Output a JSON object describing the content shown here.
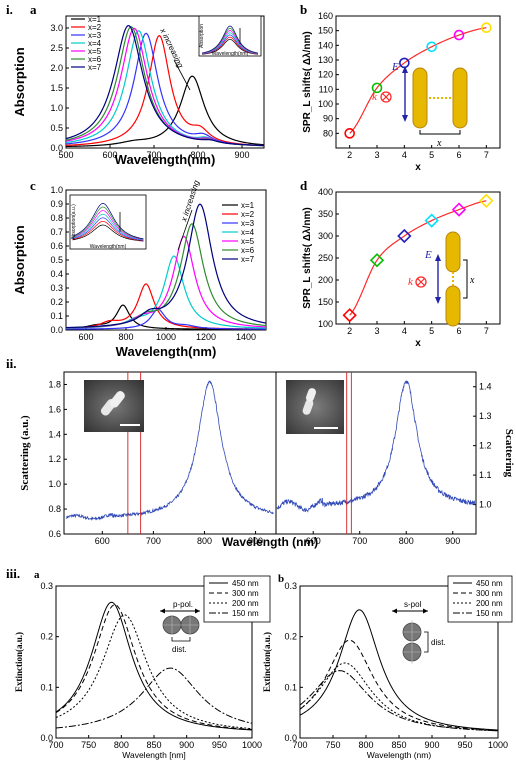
{
  "panel_labels": {
    "i": "i.",
    "ii": "ii.",
    "iii": "iii.",
    "ia": "a",
    "ib": "b",
    "ic": "c",
    "id": "d",
    "iiia": "a",
    "iiib": "b"
  },
  "colors": {
    "x1": "#000000",
    "x2": "#ff0000",
    "x3": "#3333ff",
    "x4": "#00cccc",
    "x5": "#ff00ff",
    "x6": "#2e8b2e",
    "x7": "#000080",
    "fit": "#ff2a2a",
    "rod": "#e6b800",
    "rod_edge": "#b8860b",
    "scatter_blue": "#3149b8",
    "marker_red": "#ff0000",
    "green": "#00c000",
    "blue": "#2020c0",
    "cyan": "#00e0ff",
    "magenta": "#ff00ff",
    "yellow": "#ffe000",
    "sphere": "#777777"
  },
  "diagrams": {
    "b_E": "E",
    "b_k": "k",
    "b_x": "x",
    "d_E": "E",
    "d_k": "k",
    "d_x": "x",
    "iiia_pol": "p-pol.",
    "iiia_dist": "dist.",
    "iiib_pol": "s-pol",
    "iiib_dist": "dist."
  },
  "chart_data": [
    {
      "id": "i-a",
      "type": "line",
      "xlabel": "Wavelength(nm)",
      "ylabel": "Absorption",
      "xlim": [
        500,
        950
      ],
      "ylim": [
        0,
        3.3
      ],
      "xticks": [
        500,
        600,
        700,
        800,
        900
      ],
      "yticks": [
        0.0,
        0.5,
        1.0,
        1.5,
        2.0,
        2.5,
        3.0
      ],
      "annotation": "x increasing",
      "legend": [
        "x=1",
        "x=2",
        "x=3",
        "x=4",
        "x=5",
        "x=6",
        "x=7"
      ],
      "series": [
        {
          "name": "x=1",
          "peaks": [
            [
              787,
              1.78,
              33
            ],
            [
              655,
              0.08,
              40
            ]
          ]
        },
        {
          "name": "x=2",
          "peaks": [
            [
              712,
              2.78,
              30
            ],
            [
              805,
              0.28,
              25
            ]
          ]
        },
        {
          "name": "x=3",
          "peaks": [
            [
              682,
              2.85,
              33
            ],
            [
              812,
              0.18,
              25
            ]
          ]
        },
        {
          "name": "x=4",
          "peaks": [
            [
              665,
              2.92,
              35
            ],
            [
              818,
              0.12,
              22
            ]
          ]
        },
        {
          "name": "x=5",
          "peaks": [
            [
              655,
              2.98,
              37
            ],
            [
              822,
              0.1,
              22
            ]
          ]
        },
        {
          "name": "x=6",
          "peaks": [
            [
              648,
              3.02,
              38
            ],
            [
              825,
              0.08,
              22
            ]
          ]
        },
        {
          "name": "x=7",
          "peaks": [
            [
              642,
              3.05,
              40
            ],
            [
              828,
              0.06,
              22
            ]
          ]
        }
      ],
      "inset": {
        "xlabel": "Wavelength(nm)",
        "ylabel": "Absorption"
      }
    },
    {
      "id": "i-b",
      "type": "scatter",
      "xlabel": "x",
      "ylabel": "SPR_L shifts( Δλ/nm)",
      "xlim": [
        1.5,
        7.5
      ],
      "ylim": [
        70,
        160
      ],
      "xticks": [
        2,
        3,
        4,
        5,
        6,
        7
      ],
      "yticks": [
        80,
        90,
        100,
        110,
        120,
        130,
        140,
        150,
        160
      ],
      "x": [
        2,
        3,
        4,
        5,
        6,
        7
      ],
      "y": [
        80,
        111,
        128,
        139,
        147,
        152
      ],
      "marker_colors": [
        "#ff0000",
        "#00c000",
        "#2020c0",
        "#00e0ff",
        "#ff00ff",
        "#ffe000"
      ]
    },
    {
      "id": "i-c",
      "type": "line",
      "xlabel": "Wavelength(nm)",
      "ylabel": "Absorption",
      "xlim": [
        500,
        1500
      ],
      "ylim": [
        0,
        1.0
      ],
      "xticks": [
        600,
        800,
        1000,
        1200,
        1400
      ],
      "yticks": [
        0.0,
        0.1,
        0.2,
        0.3,
        0.4,
        0.5,
        0.6,
        0.7,
        0.8,
        0.9,
        1.0
      ],
      "annotation": "x increasing",
      "legend": [
        "x=1",
        "x=2",
        "x=3",
        "x=4",
        "x=5",
        "x=6",
        "x=7"
      ],
      "series": [
        {
          "name": "x=1",
          "peaks": [
            [
              785,
              0.17,
              40
            ],
            [
              650,
              0.02,
              60
            ]
          ]
        },
        {
          "name": "x=2",
          "peaks": [
            [
              900,
              0.32,
              50
            ],
            [
              720,
              0.04,
              60
            ]
          ]
        },
        {
          "name": "x=3",
          "peaks": [
            [
              960,
              0.14,
              45
            ],
            [
              1100,
              0.02,
              60
            ]
          ]
        },
        {
          "name": "x=4",
          "peaks": [
            [
              1040,
              0.52,
              60
            ],
            [
              850,
              0.04,
              60
            ]
          ]
        },
        {
          "name": "x=5",
          "peaks": [
            [
              1090,
              0.66,
              65
            ],
            [
              880,
              0.05,
              60
            ]
          ]
        },
        {
          "name": "x=6",
          "peaks": [
            [
              1130,
              0.75,
              70
            ],
            [
              900,
              0.06,
              60
            ]
          ]
        },
        {
          "name": "x=7",
          "peaks": [
            [
              1170,
              0.89,
              75
            ],
            [
              920,
              0.07,
              60
            ]
          ]
        }
      ],
      "inset": {
        "xlabel": "Wavelength(nm)",
        "ylabel": "Absorption(a.u.)"
      }
    },
    {
      "id": "i-d",
      "type": "scatter",
      "xlabel": "x",
      "ylabel": "SPR_L shifts( Δλ/nm)",
      "xlim": [
        1.5,
        7.5
      ],
      "ylim": [
        100,
        400
      ],
      "xticks": [
        2,
        3,
        4,
        5,
        6,
        7
      ],
      "yticks": [
        100,
        150,
        200,
        250,
        300,
        350,
        400
      ],
      "x": [
        2,
        3,
        4,
        5,
        6,
        7
      ],
      "y": [
        120,
        245,
        300,
        335,
        360,
        380
      ],
      "marker_colors": [
        "#ff0000",
        "#00c000",
        "#2020c0",
        "#00e0ff",
        "#ff00ff",
        "#ffe000"
      ]
    },
    {
      "id": "ii",
      "type": "line",
      "xlabel": "Wavelength (nm)",
      "ylabel_left": "Scattering (a.u.)",
      "ylabel_right": "Scattering",
      "left": {
        "xlim": [
          525,
          940
        ],
        "ylim": [
          0.6,
          1.9
        ],
        "xticks": [
          600,
          700,
          800,
          900
        ],
        "yticks": [
          0.6,
          0.8,
          1.0,
          1.2,
          1.4,
          1.6,
          1.8
        ],
        "peak": [
          810,
          1.82,
          28
        ],
        "base": 0.72,
        "markers": [
          650,
          675
        ]
      },
      "right": {
        "xlim": [
          520,
          950
        ],
        "ylim": [
          0.9,
          1.45
        ],
        "xticks": [
          600,
          700,
          800,
          900
        ],
        "yticks": [
          1.0,
          1.1,
          1.2,
          1.3,
          1.4
        ],
        "peak": [
          800,
          1.42,
          28
        ],
        "base": 0.99,
        "markers": [
          672,
          682
        ]
      }
    },
    {
      "id": "iii-a",
      "type": "line",
      "xlabel": "Wavelength [nm]",
      "ylabel": "Extinction(a.u.)",
      "xlim": [
        700,
        1000
      ],
      "ylim": [
        0,
        0.3
      ],
      "xticks": [
        700,
        750,
        800,
        850,
        900,
        950,
        1000
      ],
      "yticks": [
        0.0,
        0.1,
        0.2,
        0.3
      ],
      "legend": [
        "450 nm",
        "300 nm",
        "200 nm",
        "150 nm"
      ],
      "series": [
        {
          "name": "450 nm",
          "dash": "",
          "peak": [
            785,
            0.26,
            38
          ]
        },
        {
          "name": "300 nm",
          "dash": "5,3",
          "peak": [
            790,
            0.255,
            40
          ]
        },
        {
          "name": "200 nm",
          "dash": "2,2",
          "peak": [
            805,
            0.235,
            42
          ]
        },
        {
          "name": "150 nm",
          "dash": "7,2,2,2",
          "peak": [
            875,
            0.13,
            55
          ]
        }
      ]
    },
    {
      "id": "iii-b",
      "type": "line",
      "xlabel": "Wavelength (nm)",
      "ylabel": "Extinction(a.u.)",
      "xlim": [
        700,
        1000
      ],
      "ylim": [
        0,
        0.3
      ],
      "xticks": [
        700,
        750,
        800,
        850,
        900,
        950,
        1000
      ],
      "yticks": [
        0.0,
        0.1,
        0.2,
        0.3
      ],
      "legend": [
        "450 nm",
        "300 nm",
        "200 nm",
        "150 nm"
      ],
      "series": [
        {
          "name": "450 nm",
          "dash": "",
          "peak": [
            790,
            0.245,
            38
          ]
        },
        {
          "name": "300 nm",
          "dash": "5,3",
          "peak": [
            775,
            0.185,
            45
          ]
        },
        {
          "name": "200 nm",
          "dash": "2,2",
          "peak": [
            768,
            0.14,
            50
          ]
        },
        {
          "name": "150 nm",
          "dash": "7,2,2,2",
          "peak": [
            760,
            0.125,
            55
          ]
        }
      ]
    }
  ]
}
